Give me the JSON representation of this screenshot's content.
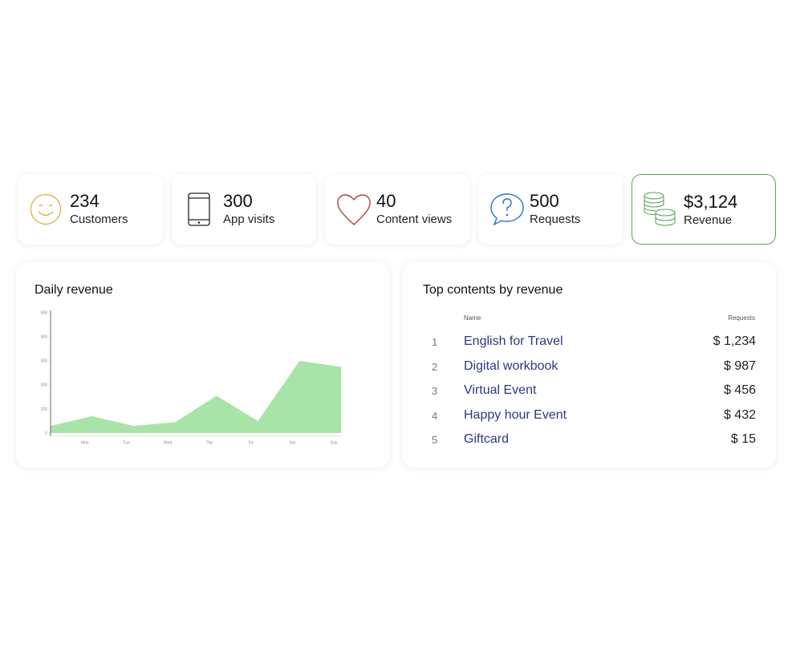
{
  "stats": [
    {
      "value": "234",
      "label": "Customers"
    },
    {
      "value": "300",
      "label": "App visits"
    },
    {
      "value": "40",
      "label": "Content views"
    },
    {
      "value": "500",
      "label": "Requests"
    },
    {
      "value": "$3,124",
      "label": "Revenue"
    }
  ],
  "chart_data": {
    "type": "area",
    "title": "Daily revenue",
    "categories": [
      null,
      "Mon",
      "Tue",
      "Wed",
      "Thu",
      "Fri",
      "Sat",
      "Sun"
    ],
    "values": [
      30,
      70,
      30,
      45,
      155,
      50,
      300,
      275
    ],
    "color": "#a8e4a8",
    "ylim": [
      0,
      500
    ],
    "yticks": [
      0,
      100,
      200,
      300,
      400,
      500
    ]
  },
  "table": {
    "title": "Top contents by revenue",
    "columns": [
      "Name",
      "Requests"
    ],
    "rows": [
      [
        "1",
        "English for Travel",
        "$ 1,234"
      ],
      [
        "2",
        "Digital workbook",
        "$ 987"
      ],
      [
        "3",
        "Virtual Event",
        "$ 456"
      ],
      [
        "4",
        "Happy hour Event",
        "$ 432"
      ],
      [
        "5",
        "Giftcard",
        "$ 15"
      ]
    ]
  }
}
